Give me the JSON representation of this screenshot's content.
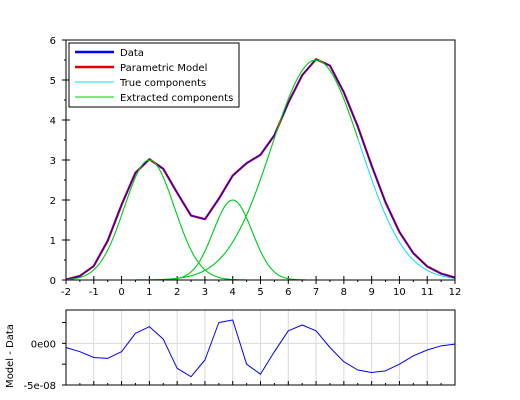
{
  "chart_data": [
    {
      "type": "line",
      "xlim": [
        -2,
        12
      ],
      "ylim": [
        0,
        6
      ],
      "x_ticks": [
        -2,
        -1,
        0,
        1,
        2,
        3,
        4,
        5,
        6,
        7,
        8,
        9,
        10,
        11,
        12
      ],
      "y_ticks": [
        0,
        1,
        2,
        3,
        4,
        5,
        6
      ],
      "grid": false,
      "legend_position": "top-left",
      "legend": [
        {
          "label": "Data",
          "color": "#0000ff"
        },
        {
          "label": "Parametric Model",
          "color": "#e00000"
        },
        {
          "label": "True components",
          "color": "#00e5e5"
        },
        {
          "label": "Extracted components",
          "color": "#00d000"
        }
      ],
      "components": [
        {
          "amplitude": 3.0,
          "center": 1.0,
          "sigma": 0.9
        },
        {
          "amplitude": 2.0,
          "center": 4.0,
          "sigma": 0.7
        },
        {
          "amplitude": 5.5,
          "center": 7.0,
          "sigma": 1.6
        }
      ],
      "series": [
        {
          "name": "Data",
          "color": "#0000ff",
          "x": [
            -2,
            -1.5,
            -1,
            -0.5,
            0,
            0.5,
            1,
            1.5,
            2,
            2.5,
            3,
            3.5,
            4,
            4.5,
            5,
            5.5,
            6,
            6.5,
            7,
            7.5,
            8,
            8.5,
            9,
            9.5,
            10,
            10.5,
            11,
            11.5,
            12
          ],
          "y": [
            0.01,
            0.1,
            0.35,
            0.98,
            1.88,
            2.68,
            3.02,
            2.78,
            2.18,
            1.61,
            1.52,
            2.03,
            2.61,
            2.92,
            3.13,
            3.62,
            4.43,
            5.12,
            5.52,
            5.36,
            4.69,
            3.84,
            2.86,
            1.94,
            1.2,
            0.67,
            0.34,
            0.16,
            0.06
          ]
        },
        {
          "name": "Parametric Model",
          "color": "#e00000",
          "x": [
            -2,
            -1.5,
            -1,
            -0.5,
            0,
            0.5,
            1,
            1.5,
            2,
            2.5,
            3,
            3.5,
            4,
            4.5,
            5,
            5.5,
            6,
            6.5,
            7,
            7.5,
            8,
            8.5,
            9,
            9.5,
            10,
            10.5,
            11,
            11.5,
            12
          ],
          "y": [
            0.01,
            0.1,
            0.35,
            0.98,
            1.88,
            2.68,
            3.02,
            2.78,
            2.18,
            1.61,
            1.52,
            2.03,
            2.61,
            2.92,
            3.13,
            3.62,
            4.43,
            5.12,
            5.52,
            5.36,
            4.69,
            3.84,
            2.86,
            1.94,
            1.2,
            0.67,
            0.34,
            0.16,
            0.06
          ]
        },
        {
          "name": "True components",
          "color": "#00e5e5",
          "x_start": -2,
          "x_end": 12
        },
        {
          "name": "Extracted components",
          "color": "#00d000",
          "x_start": -2,
          "x_end": 8.5
        }
      ]
    },
    {
      "type": "line",
      "ylabel": "Model - Data",
      "xlim": [
        -2,
        12
      ],
      "ylim": [
        -5e-08,
        4e-08
      ],
      "y_tick_labels": [
        {
          "value": 0,
          "label": "0e00"
        },
        {
          "value": -5e-08,
          "label": "-5e-08"
        }
      ],
      "grid": true,
      "series": [
        {
          "color": "#0000ff",
          "x": [
            -2,
            -1.5,
            -1,
            -0.5,
            0,
            0.5,
            1,
            1.5,
            2,
            2.5,
            3,
            3.5,
            4,
            4.5,
            5,
            5.5,
            6,
            6.5,
            7,
            7.5,
            8,
            8.5,
            9,
            9.5,
            10,
            10.5,
            11,
            11.5,
            12
          ],
          "y": [
            -5e-09,
            -1e-08,
            -1.7e-08,
            -1.8e-08,
            -1e-08,
            1.2e-08,
            2e-08,
            5e-09,
            -3e-08,
            -4e-08,
            -2e-08,
            2.5e-08,
            2.8e-08,
            -2.5e-08,
            -3.7e-08,
            -1e-08,
            1.5e-08,
            2.2e-08,
            1.5e-08,
            -5e-09,
            -2.2e-08,
            -3.2e-08,
            -3.5e-08,
            -3.3e-08,
            -2.5e-08,
            -1.5e-08,
            -8e-09,
            -3e-09,
            -1e-09
          ]
        }
      ]
    }
  ]
}
